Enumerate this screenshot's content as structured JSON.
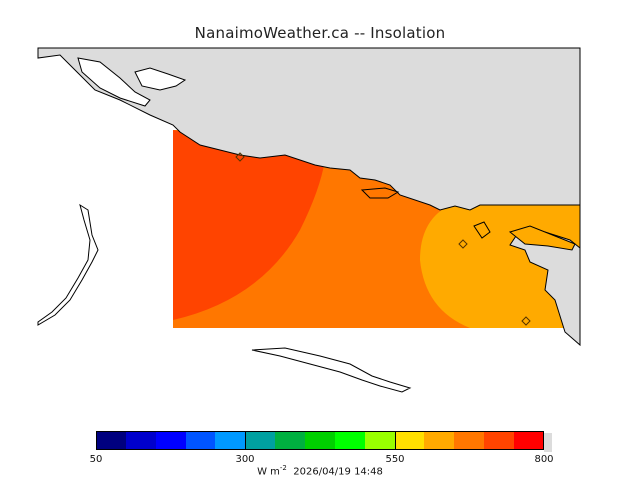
{
  "title": "NanaimoWeather.ca -- Insolation",
  "colorbar": {
    "colors": [
      "#00007f",
      "#0000cc",
      "#0000ff",
      "#0055ff",
      "#0099ff",
      "#00a0a0",
      "#00b040",
      "#00d000",
      "#00ff00",
      "#99ff00",
      "#ffe000",
      "#ffaa00",
      "#ff7700",
      "#ff4400",
      "#ff0000"
    ],
    "ticks": [
      "50",
      "300",
      "550",
      "800"
    ]
  },
  "units": "W m",
  "units_exp": "-2",
  "timestamp": "2026/04/19 14:48",
  "station_markers": 3,
  "insolation_zones": {
    "west": "#ff4400",
    "middle": "#ff7700",
    "east": "#ffaa00"
  },
  "land_color": "#dcdcdc"
}
